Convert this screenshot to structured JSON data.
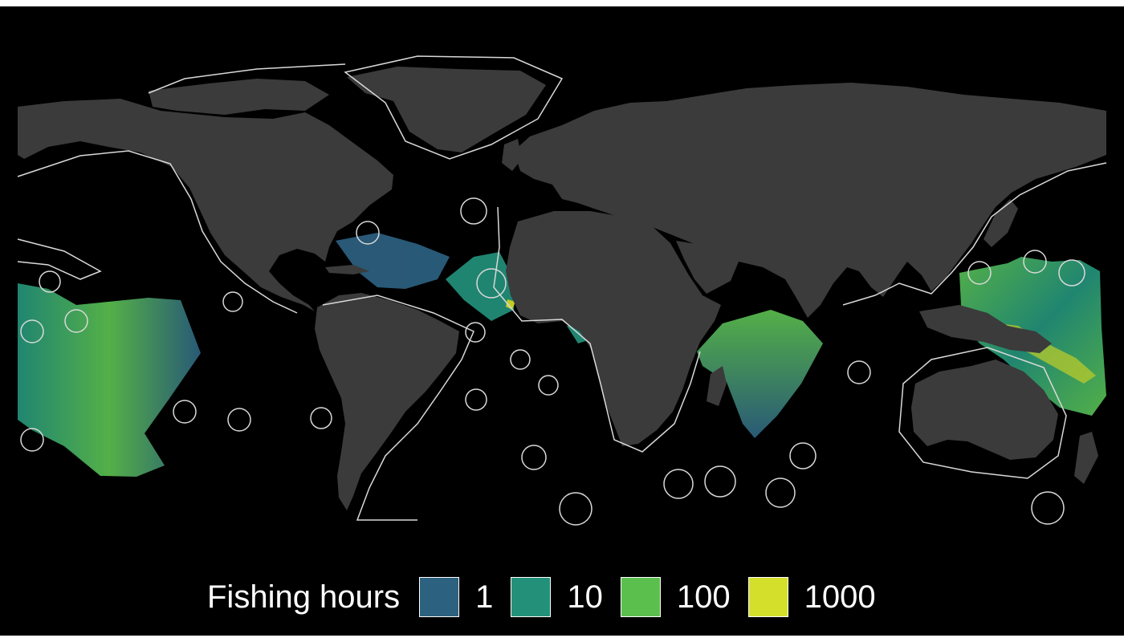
{
  "colors": {
    "background": "#000000",
    "land": "#3b3b3b",
    "eez_boundary": "#d9d9d9",
    "scale": [
      "#2c6180",
      "#23917a",
      "#5bbf4e",
      "#d3df2b"
    ]
  },
  "legend": {
    "title": "Fishing hours",
    "items": [
      {
        "label": "1",
        "color": "#2c6180"
      },
      {
        "label": "10",
        "color": "#23917a"
      },
      {
        "label": "100",
        "color": "#5bbf4e"
      },
      {
        "label": "1000",
        "color": "#d3df2b"
      }
    ]
  }
}
